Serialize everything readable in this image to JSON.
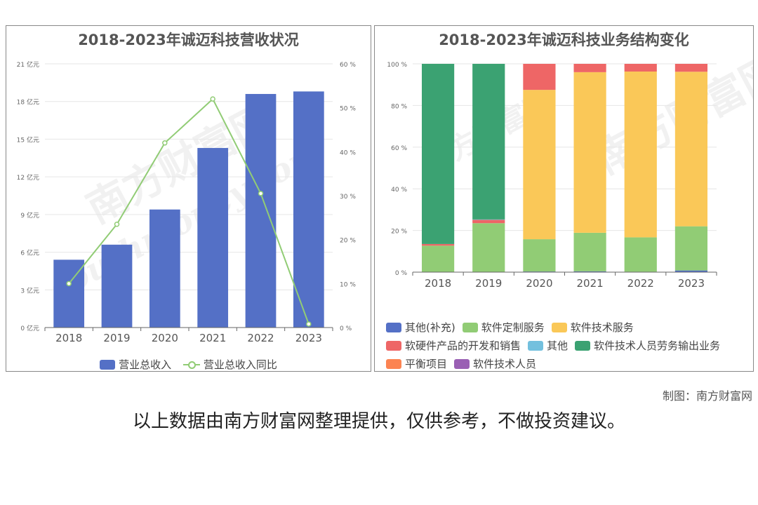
{
  "left_panel": {
    "title": "2018-2023年诚迈科技营收状况",
    "legend": [
      {
        "label": "营业总收入",
        "kind": "bar",
        "color": "#5470c6"
      },
      {
        "label": "营业总收入同比",
        "kind": "line",
        "color": "#91cc75"
      }
    ]
  },
  "right_panel": {
    "title": "2018-2023年诚迈科技业务结构变化",
    "legend": [
      {
        "label": "其他(补充)",
        "color": "#5470c6"
      },
      {
        "label": "软件定制服务",
        "color": "#91cc75"
      },
      {
        "label": "软件技术服务",
        "color": "#fac858"
      },
      {
        "label": "软硬件产品的开发和销售",
        "color": "#ee6666"
      },
      {
        "label": "其他",
        "color": "#73c0de"
      },
      {
        "label": "软件技术人员劳务输出业务",
        "color": "#3ba272"
      },
      {
        "label": "平衡项目",
        "color": "#fc8452"
      },
      {
        "label": "软件技术人员",
        "color": "#9a60b4"
      }
    ]
  },
  "credit": "制图：南方财富网",
  "disclaimer": "以上数据由南方财富网整理提供，仅供参考，不做投资建议。",
  "watermark": {
    "brand": "南方财富网",
    "site": "southmoney.com"
  },
  "chart_data": [
    {
      "type": "bar",
      "title": "2018-2023年诚迈科技营收状况",
      "categories": [
        "2018",
        "2019",
        "2020",
        "2021",
        "2022",
        "2023"
      ],
      "series": [
        {
          "name": "营业总收入",
          "type": "bar",
          "axis": "left",
          "values": [
            5.4,
            6.6,
            9.4,
            14.3,
            18.6,
            18.8
          ]
        },
        {
          "name": "营业总收入同比",
          "type": "line",
          "axis": "right",
          "values": [
            10,
            23.5,
            42,
            52,
            30.5,
            0.8
          ]
        }
      ],
      "y_left": {
        "min": 0,
        "max": 21,
        "ticks": [
          "0 亿元",
          "3 亿元",
          "6 亿元",
          "9 亿元",
          "12 亿元",
          "15 亿元",
          "18 亿元",
          "21 亿元"
        ]
      },
      "y_right": {
        "min": 0,
        "max": 60,
        "ticks": [
          "0 %",
          "10 %",
          "20 %",
          "30 %",
          "40 %",
          "50 %",
          "60 %"
        ]
      },
      "grid": true,
      "legend_position": "bottom"
    },
    {
      "type": "bar",
      "stacked": true,
      "title": "2018-2023年诚迈科技业务结构变化",
      "categories": [
        "2018",
        "2019",
        "2020",
        "2021",
        "2022",
        "2023"
      ],
      "series": [
        {
          "name": "其他(补充)",
          "values": [
            0,
            0,
            0.3,
            0.4,
            0.2,
            0.8
          ]
        },
        {
          "name": "软件定制服务",
          "values": [
            12.7,
            23.5,
            15.5,
            18.5,
            16.5,
            21.2
          ]
        },
        {
          "name": "软件技术服务",
          "values": [
            0,
            0,
            71.7,
            77.1,
            79.6,
            74.2
          ]
        },
        {
          "name": "软硬件产品的开发和销售",
          "values": [
            0.8,
            1.6,
            12.5,
            4.0,
            3.7,
            3.8
          ]
        },
        {
          "name": "其他",
          "values": [
            0,
            0.2,
            0,
            0,
            0,
            0
          ]
        },
        {
          "name": "软件技术人员劳务输出业务",
          "values": [
            86.5,
            74.7,
            0,
            0,
            0,
            0
          ]
        },
        {
          "name": "平衡项目",
          "values": [
            0,
            0,
            0,
            0,
            0,
            0
          ]
        },
        {
          "name": "软件技术人员",
          "values": [
            0,
            0,
            0,
            0,
            0,
            0
          ]
        }
      ],
      "y": {
        "min": 0,
        "max": 100,
        "ticks": [
          "0 %",
          "20 %",
          "40 %",
          "60 %",
          "80 %",
          "100 %"
        ]
      },
      "grid": true,
      "legend_position": "bottom"
    }
  ]
}
